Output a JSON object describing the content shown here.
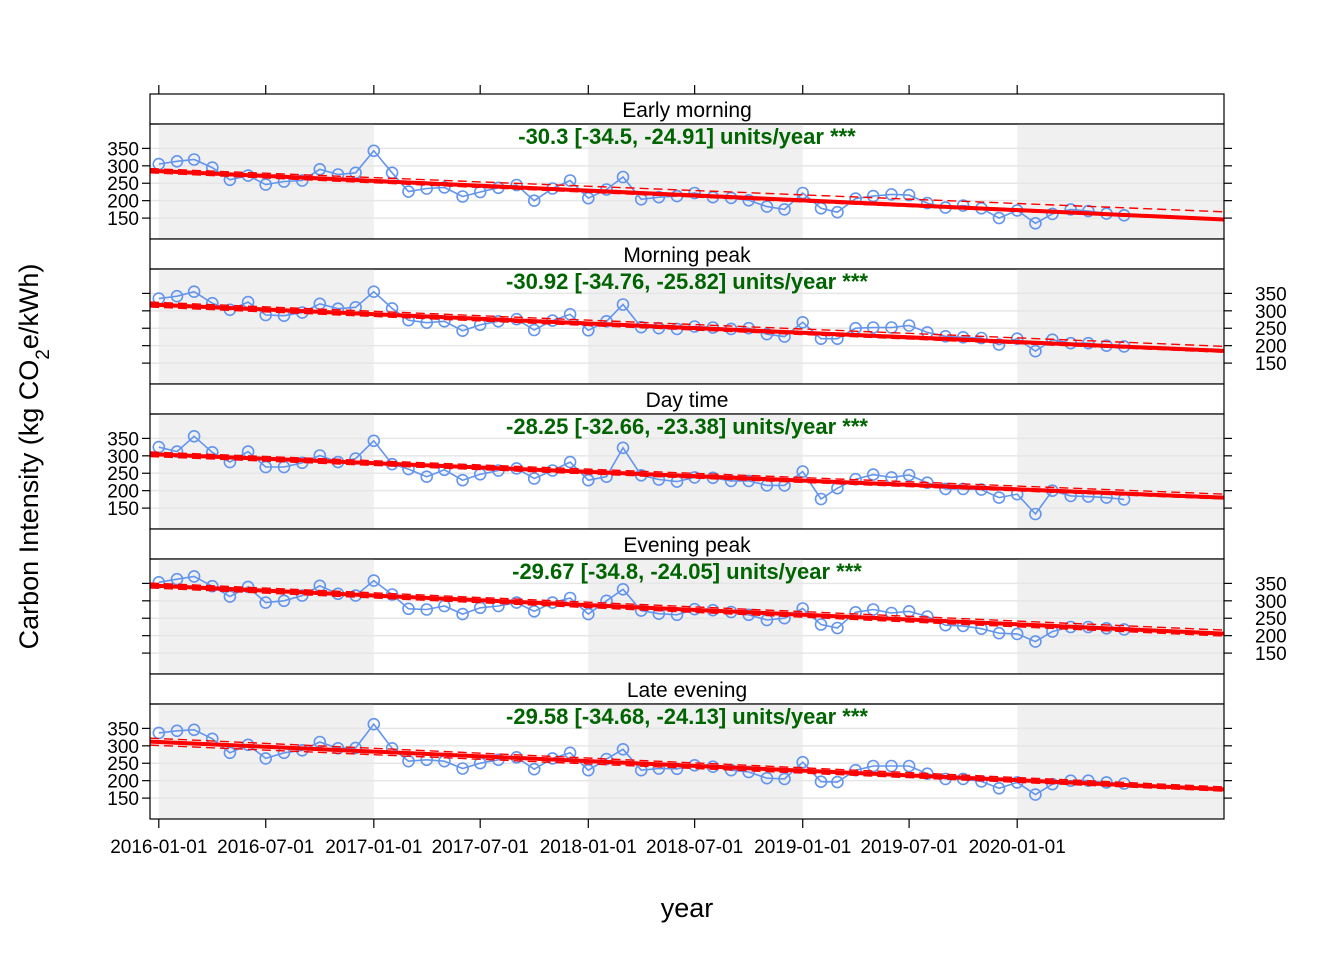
{
  "chart_data": {
    "type": "line",
    "ylabel_parts": [
      "Carbon Intensity (kg CO",
      "2",
      "e/kWh)"
    ],
    "xlabel": "year",
    "x_ticks": [
      "2016-01-01",
      "2016-07-01",
      "2017-01-01",
      "2017-07-01",
      "2018-01-01",
      "2018-07-01",
      "2019-01-01",
      "2019-07-01",
      "2020-01-01"
    ],
    "y_ticks": [
      150,
      200,
      250,
      300,
      350
    ],
    "ylim": [
      90,
      420
    ],
    "xlim": [
      "2015-12-17",
      "2020-12-18"
    ],
    "grid": true,
    "x_dates": [
      "2016-01-01",
      "2016-02-01",
      "2016-03-01",
      "2016-04-01",
      "2016-05-01",
      "2016-06-01",
      "2016-07-01",
      "2016-08-01",
      "2016-09-01",
      "2016-10-01",
      "2016-11-01",
      "2016-12-01",
      "2017-01-01",
      "2017-02-01",
      "2017-03-01",
      "2017-04-01",
      "2017-05-01",
      "2017-06-01",
      "2017-07-01",
      "2017-08-01",
      "2017-09-01",
      "2017-10-01",
      "2017-11-01",
      "2017-12-01",
      "2018-01-01",
      "2018-02-01",
      "2018-03-01",
      "2018-04-01",
      "2018-05-01",
      "2018-06-01",
      "2018-07-01",
      "2018-08-01",
      "2018-09-01",
      "2018-10-01",
      "2018-11-01",
      "2018-12-01",
      "2019-01-01",
      "2019-02-01",
      "2019-03-01",
      "2019-04-01",
      "2019-05-01",
      "2019-06-01",
      "2019-07-01",
      "2019-08-01",
      "2019-09-01",
      "2019-10-01",
      "2019-11-01",
      "2019-12-01",
      "2020-01-01",
      "2020-02-01",
      "2020-03-01",
      "2020-04-01",
      "2020-05-01",
      "2020-06-01",
      "2020-07-01"
    ],
    "panels": [
      {
        "title": "Early morning",
        "trend_label": "-30.3 [-34.5, -24.91] units/year ***",
        "y_axis_side": "left",
        "values": [
          305,
          313,
          318,
          295,
          260,
          272,
          246,
          255,
          258,
          290,
          275,
          280,
          343,
          280,
          226,
          235,
          238,
          212,
          225,
          237,
          245,
          200,
          235,
          258,
          207,
          232,
          268,
          204,
          210,
          213,
          222,
          210,
          208,
          201,
          183,
          175,
          222,
          178,
          167,
          206,
          213,
          218,
          216,
          193,
          180,
          186,
          178,
          150,
          172,
          135,
          162,
          175,
          170,
          163,
          158
        ],
        "trend": {
          "start": 286,
          "end": 146,
          "lower_start": 280,
          "lower_end": 143,
          "upper_start": 292,
          "upper_end": 168
        }
      },
      {
        "title": "Morning peak",
        "trend_label": "-30.92 [-34.76, -25.82] units/year ***",
        "y_axis_side": "right",
        "values": [
          335,
          342,
          355,
          322,
          303,
          325,
          288,
          286,
          295,
          320,
          306,
          310,
          355,
          307,
          273,
          266,
          270,
          243,
          260,
          270,
          276,
          245,
          272,
          290,
          244,
          270,
          318,
          253,
          250,
          248,
          255,
          252,
          248,
          250,
          233,
          226,
          267,
          220,
          220,
          250,
          252,
          252,
          258,
          238,
          227,
          224,
          222,
          203,
          220,
          184,
          217,
          207,
          207,
          200,
          198
        ],
        "trend": {
          "start": 318,
          "end": 185,
          "lower_start": 311,
          "lower_end": 181,
          "upper_start": 325,
          "upper_end": 198
        }
      },
      {
        "title": "Day time",
        "trend_label": "-28.25 [-32.66, -23.38] units/year ***",
        "y_axis_side": "left",
        "values": [
          325,
          312,
          356,
          310,
          282,
          312,
          268,
          268,
          280,
          301,
          282,
          292,
          343,
          276,
          262,
          240,
          260,
          230,
          247,
          258,
          264,
          235,
          258,
          282,
          230,
          240,
          323,
          244,
          232,
          226,
          238,
          237,
          228,
          228,
          215,
          215,
          255,
          176,
          207,
          233,
          246,
          238,
          245,
          223,
          205,
          205,
          203,
          180,
          190,
          133,
          200,
          185,
          183,
          180,
          175
        ],
        "trend": {
          "start": 305,
          "end": 180,
          "lower_start": 298,
          "lower_end": 176,
          "upper_start": 311,
          "upper_end": 190
        }
      },
      {
        "title": "Evening peak",
        "trend_label": "-29.67 [-34.8, -24.05] units/year ***",
        "y_axis_side": "right",
        "values": [
          353,
          362,
          370,
          342,
          312,
          340,
          295,
          300,
          315,
          343,
          320,
          315,
          358,
          318,
          277,
          275,
          285,
          262,
          280,
          285,
          295,
          270,
          295,
          308,
          262,
          300,
          333,
          272,
          263,
          260,
          276,
          273,
          268,
          260,
          245,
          250,
          278,
          232,
          222,
          267,
          275,
          265,
          270,
          255,
          230,
          228,
          220,
          207,
          205,
          183,
          212,
          225,
          225,
          221,
          218
        ],
        "trend": {
          "start": 344,
          "end": 206,
          "lower_start": 337,
          "lower_end": 199,
          "upper_start": 351,
          "upper_end": 216
        }
      },
      {
        "title": "Late evening",
        "trend_label": "-29.58 [-34.68, -24.13] units/year ***",
        "y_axis_side": "left",
        "values": [
          337,
          343,
          346,
          320,
          280,
          303,
          264,
          280,
          287,
          311,
          293,
          294,
          362,
          293,
          256,
          260,
          256,
          235,
          250,
          260,
          267,
          233,
          264,
          280,
          230,
          262,
          290,
          230,
          235,
          234,
          244,
          240,
          230,
          225,
          207,
          205,
          253,
          197,
          196,
          230,
          242,
          242,
          242,
          220,
          205,
          205,
          198,
          178,
          195,
          160,
          190,
          200,
          200,
          195,
          192
        ],
        "trend": {
          "start": 312,
          "end": 175,
          "lower_start": 302,
          "lower_end": 170,
          "upper_start": 322,
          "upper_end": 182
        }
      }
    ],
    "colors": {
      "points": "#6495ED",
      "trend": "#FF0000",
      "trend_text": "#006400",
      "shade": "#F0F0F0",
      "grid": "#E6E6E6"
    }
  }
}
